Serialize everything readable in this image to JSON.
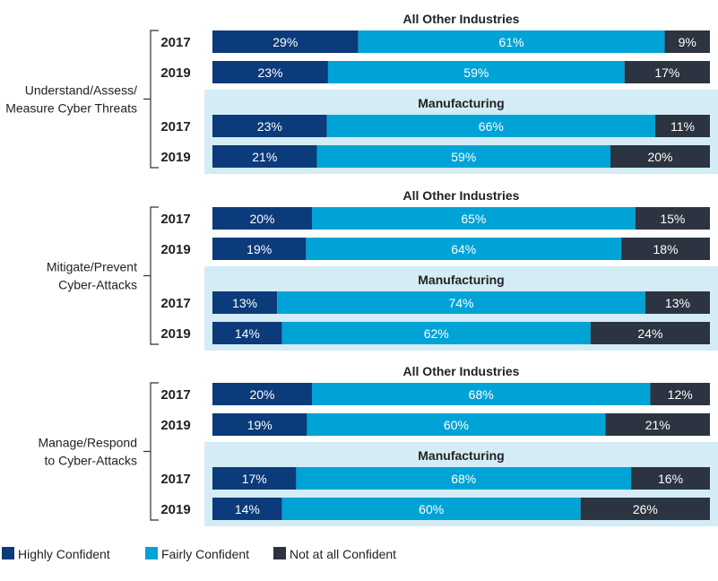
{
  "chart_data": {
    "type": "bar",
    "stacked": true,
    "orientation": "horizontal",
    "legend": [
      {
        "name": "Highly Confident",
        "color": "#0b3b7a"
      },
      {
        "name": "Fairly Confident",
        "color": "#00a3d6"
      },
      {
        "name": "Not at all Confident",
        "color": "#2b3440"
      }
    ],
    "legend_position": "bottom-left",
    "panel_highlight_color": "#d4ecf6",
    "categories": [
      {
        "label_lines": [
          "Understand/Assess/",
          "Measure Cyber Threats"
        ],
        "groups": [
          {
            "title": "All Other Industries",
            "highlight": false,
            "rows": [
              {
                "year": "2017",
                "values": [
                  29,
                  61,
                  9
                ],
                "labels": [
                  "29%",
                  "61%",
                  "9%"
                ]
              },
              {
                "year": "2019",
                "values": [
                  23,
                  59,
                  17
                ],
                "labels": [
                  "23%",
                  "59%",
                  "17%"
                ]
              }
            ]
          },
          {
            "title": "Manufacturing",
            "highlight": true,
            "rows": [
              {
                "year": "2017",
                "values": [
                  23,
                  66,
                  11
                ],
                "labels": [
                  "23%",
                  "66%",
                  "11%"
                ]
              },
              {
                "year": "2019",
                "values": [
                  21,
                  59,
                  20
                ],
                "labels": [
                  "21%",
                  "59%",
                  "20%"
                ]
              }
            ]
          }
        ]
      },
      {
        "label_lines": [
          "Mitigate/Prevent",
          "Cyber-Attacks"
        ],
        "groups": [
          {
            "title": "All Other Industries",
            "highlight": false,
            "rows": [
              {
                "year": "2017",
                "values": [
                  20,
                  65,
                  15
                ],
                "labels": [
                  "20%",
                  "65%",
                  "15%"
                ]
              },
              {
                "year": "2019",
                "values": [
                  19,
                  64,
                  18
                ],
                "labels": [
                  "19%",
                  "64%",
                  "18%"
                ]
              }
            ]
          },
          {
            "title": "Manufacturing",
            "highlight": true,
            "rows": [
              {
                "year": "2017",
                "values": [
                  13,
                  74,
                  13
                ],
                "labels": [
                  "13%",
                  "74%",
                  "13%"
                ]
              },
              {
                "year": "2019",
                "values": [
                  14,
                  62,
                  24
                ],
                "labels": [
                  "14%",
                  "62%",
                  "24%"
                ]
              }
            ]
          }
        ]
      },
      {
        "label_lines": [
          "Manage/Respond",
          "to Cyber-Attacks"
        ],
        "groups": [
          {
            "title": "All Other Industries",
            "highlight": false,
            "rows": [
              {
                "year": "2017",
                "values": [
                  20,
                  68,
                  12
                ],
                "labels": [
                  "20%",
                  "68%",
                  "12%"
                ]
              },
              {
                "year": "2019",
                "values": [
                  19,
                  60,
                  21
                ],
                "labels": [
                  "19%",
                  "60%",
                  "21%"
                ]
              }
            ]
          },
          {
            "title": "Manufacturing",
            "highlight": true,
            "rows": [
              {
                "year": "2017",
                "values": [
                  17,
                  68,
                  16
                ],
                "labels": [
                  "17%",
                  "68%",
                  "16%"
                ]
              },
              {
                "year": "2019",
                "values": [
                  14,
                  60,
                  26
                ],
                "labels": [
                  "14%",
                  "60%",
                  "26%"
                ]
              }
            ]
          }
        ]
      }
    ]
  }
}
